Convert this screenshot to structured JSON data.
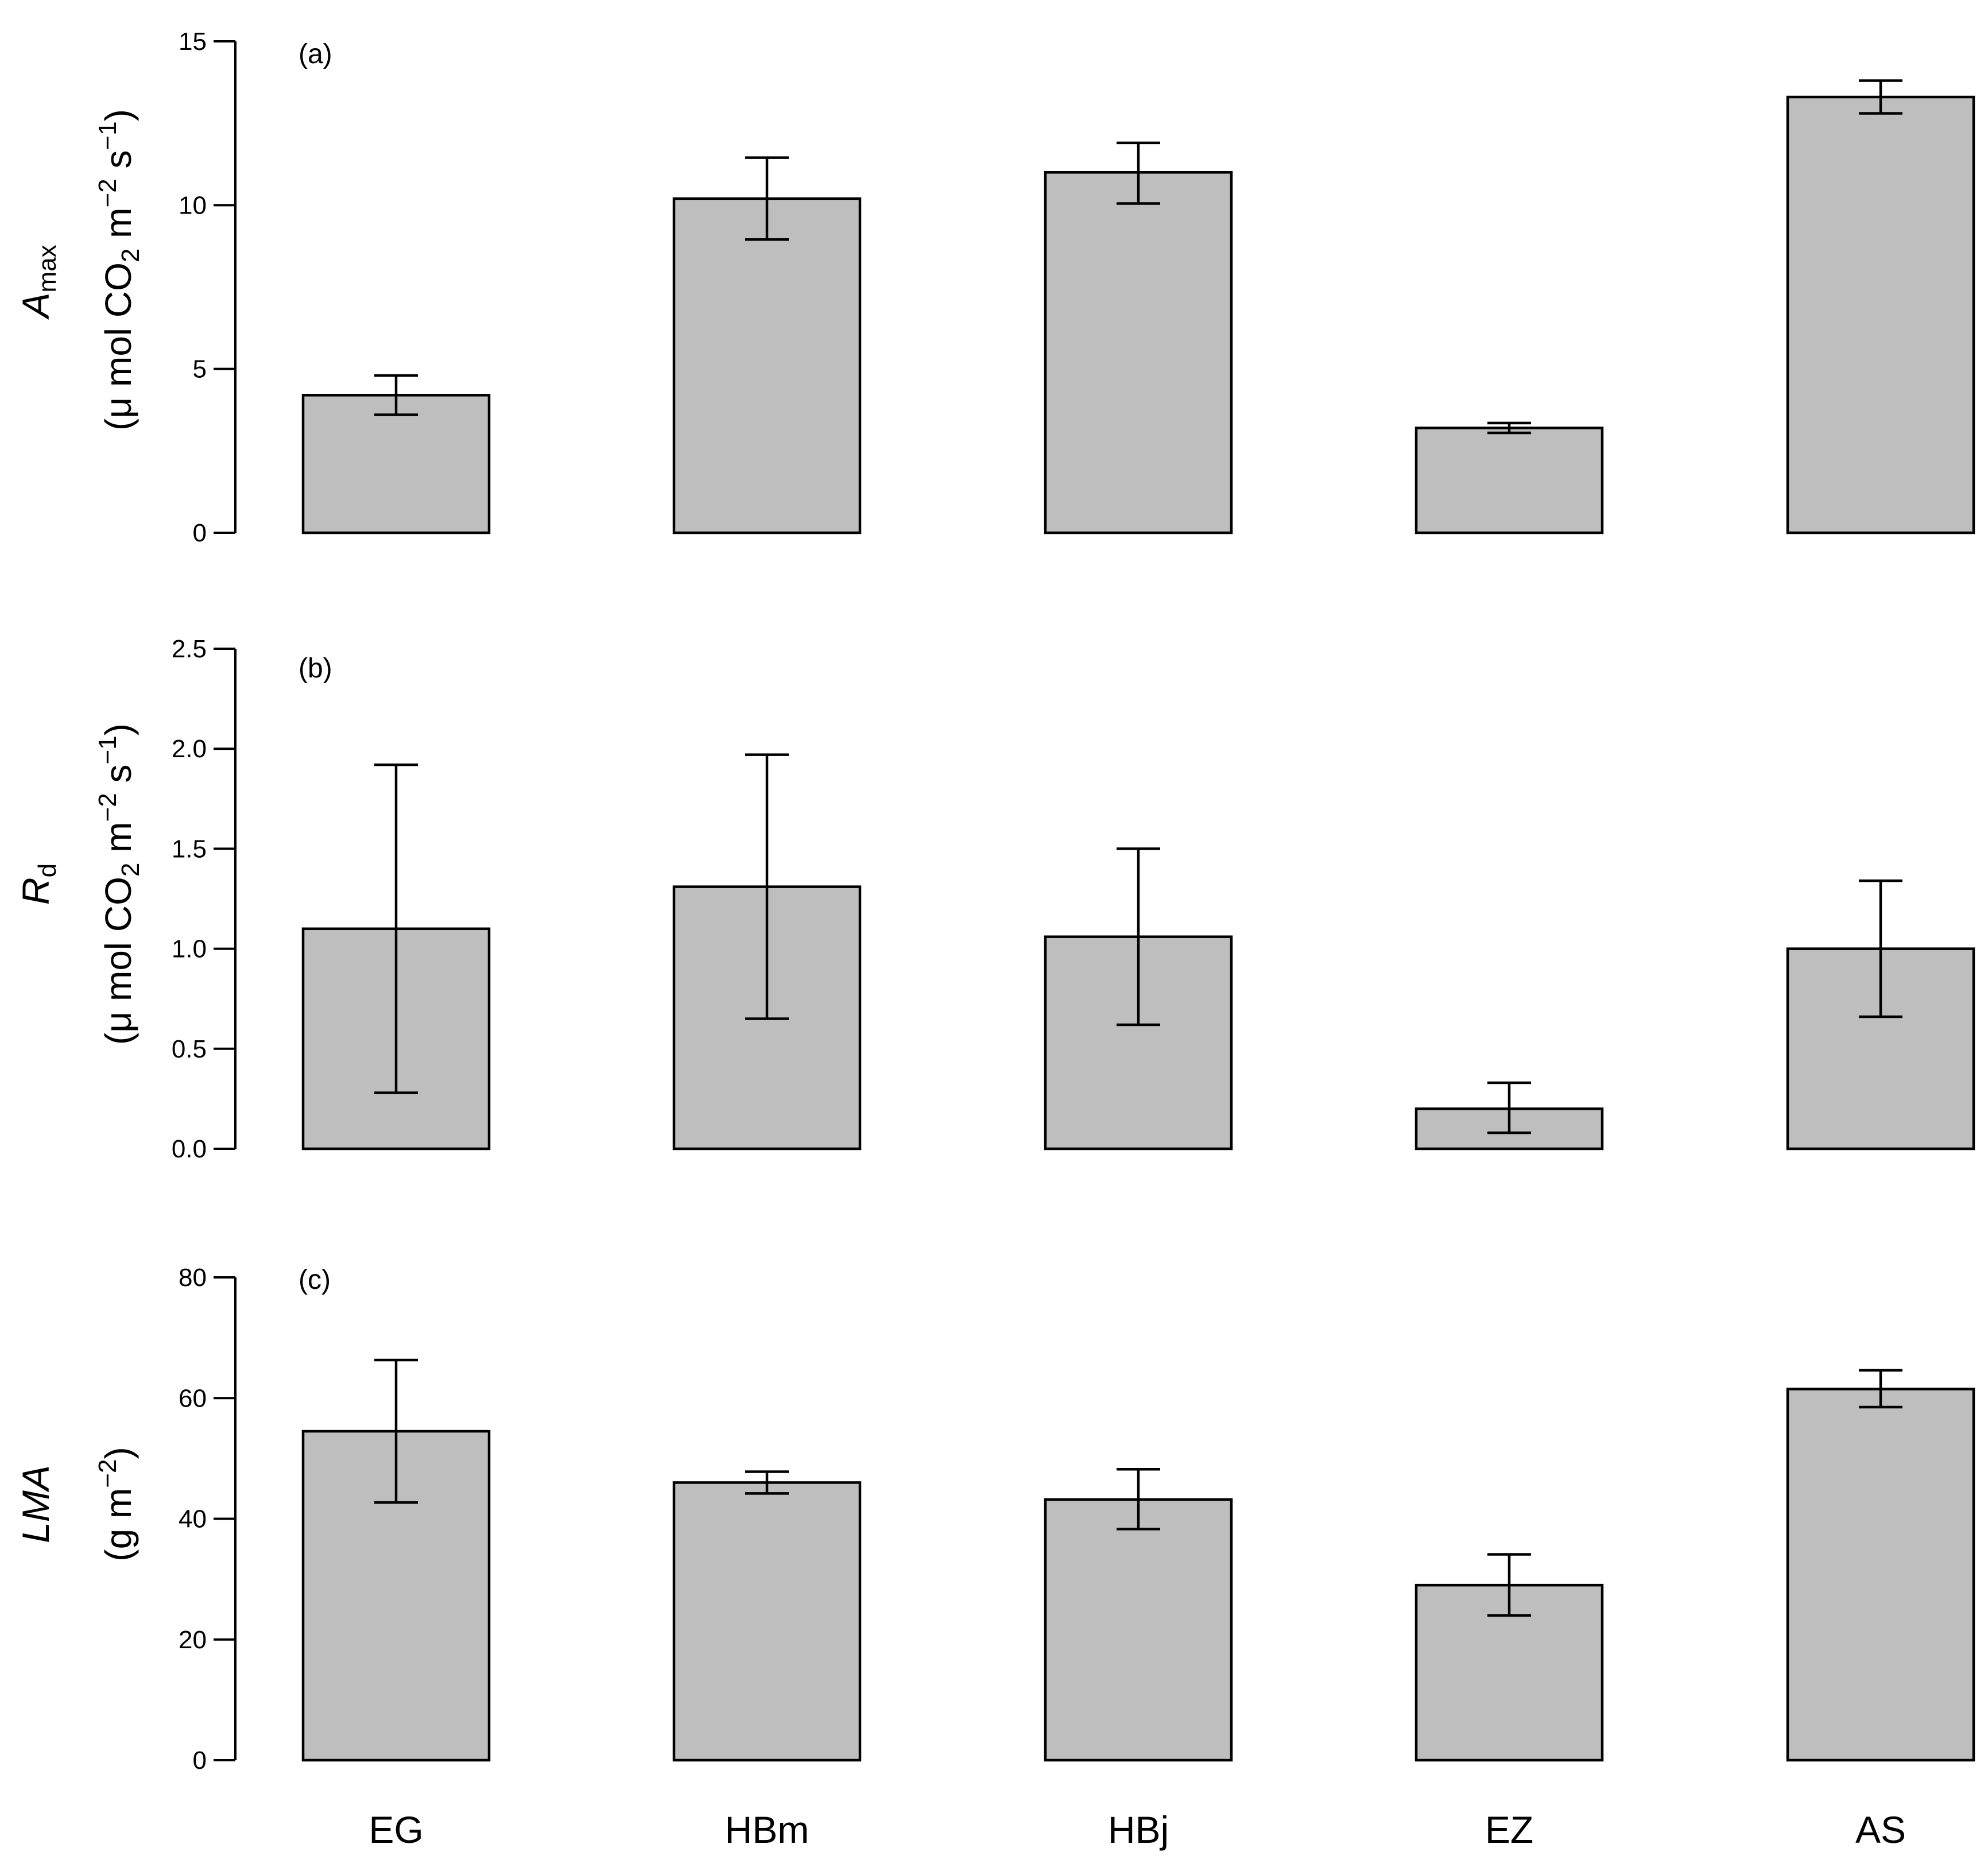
{
  "chart_data": [
    {
      "type": "bar",
      "panel_label": "(a)",
      "categories": [
        "EG",
        "HBm",
        "HBj",
        "EZ",
        "AS"
      ],
      "values": [
        4.2,
        10.2,
        11.0,
        3.2,
        13.3
      ],
      "error_low": [
        3.6,
        8.95,
        10.05,
        3.05,
        12.8
      ],
      "error_high": [
        4.8,
        11.45,
        11.9,
        3.35,
        13.8
      ],
      "ylim": [
        0,
        15
      ],
      "yticks": [
        0,
        5,
        10,
        15
      ],
      "ytick_labels": [
        "0",
        "5",
        "10",
        "15"
      ],
      "ylabel": {
        "symbol": "A",
        "subscript": "max",
        "unit_open": "(μ mol CO",
        "unit_sub": "2",
        "unit_mid": " m",
        "unit_sup1": "−2",
        "unit_s": " s",
        "unit_sup2": "−1",
        "unit_close": ")"
      }
    },
    {
      "type": "bar",
      "panel_label": "(b)",
      "categories": [
        "EG",
        "HBm",
        "HBj",
        "EZ",
        "AS"
      ],
      "values": [
        1.1,
        1.31,
        1.06,
        0.2,
        1.0
      ],
      "error_low": [
        0.28,
        0.65,
        0.62,
        0.08,
        0.66
      ],
      "error_high": [
        1.92,
        1.97,
        1.5,
        0.33,
        1.34
      ],
      "ylim": [
        0,
        2.5
      ],
      "yticks": [
        0,
        0.5,
        1.0,
        1.5,
        2.0,
        2.5
      ],
      "ytick_labels": [
        "0.0",
        "0.5",
        "1.0",
        "1.5",
        "2.0",
        "2.5"
      ],
      "ylabel": {
        "symbol": "R",
        "subscript": "d",
        "unit_open": "(μ mol CO",
        "unit_sub": "2",
        "unit_mid": " m",
        "unit_sup1": "−2",
        "unit_s": " s",
        "unit_sup2": "−1",
        "unit_close": ")"
      }
    },
    {
      "type": "bar",
      "panel_label": "(c)",
      "categories": [
        "EG",
        "HBm",
        "HBj",
        "EZ",
        "AS"
      ],
      "values": [
        54.5,
        46.0,
        43.2,
        29.0,
        61.5
      ],
      "error_low": [
        42.7,
        44.2,
        38.3,
        24.0,
        58.5
      ],
      "error_high": [
        66.3,
        47.8,
        48.2,
        34.1,
        64.6
      ],
      "ylim": [
        0,
        80
      ],
      "yticks": [
        0,
        20,
        40,
        60,
        80
      ],
      "ytick_labels": [
        "0",
        "20",
        "40",
        "60",
        "80"
      ],
      "ylabel": {
        "symbol": "LMA",
        "subscript": "",
        "unit_open": "(g m",
        "unit_sub": "",
        "unit_mid": "",
        "unit_sup1": "−2",
        "unit_s": "",
        "unit_sup2": "",
        "unit_close": ")"
      }
    }
  ],
  "x_categories": [
    "EG",
    "HBm",
    "HBj",
    "EZ",
    "AS"
  ]
}
